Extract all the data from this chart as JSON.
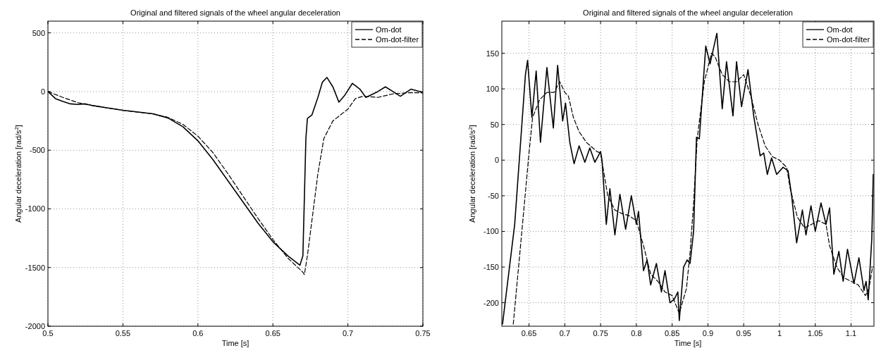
{
  "chart_data": [
    {
      "type": "line",
      "title": "Original and filtered signals of the wheel angular deceleration",
      "xlabel": "Time [s]",
      "ylabel": "Angular deceleration [rad/s$^{2}$]",
      "xlim": [
        0.5,
        0.75
      ],
      "ylim": [
        -2000,
        600
      ],
      "xticks": [
        0.5,
        0.55,
        0.6,
        0.65,
        0.7,
        0.75
      ],
      "yticks": [
        -2000,
        -1500,
        -1000,
        -500,
        0,
        500
      ],
      "grid": true,
      "legend": "top right",
      "marker": "none",
      "series": [
        {
          "name": "Om-dot",
          "color": "#000000",
          "line_style": "solid",
          "x": [
            0.5,
            0.505,
            0.51,
            0.515,
            0.52,
            0.525,
            0.53,
            0.54,
            0.55,
            0.56,
            0.57,
            0.58,
            0.59,
            0.6,
            0.61,
            0.62,
            0.63,
            0.64,
            0.65,
            0.66,
            0.668,
            0.67,
            0.671,
            0.672,
            0.673,
            0.676,
            0.68,
            0.683,
            0.686,
            0.69,
            0.694,
            0.698,
            0.703,
            0.708,
            0.712,
            0.72,
            0.725,
            0.73,
            0.735,
            0.742,
            0.748,
            0.75
          ],
          "values": [
            0,
            -60,
            -85,
            -105,
            -110,
            -105,
            -120,
            -140,
            -160,
            -175,
            -190,
            -225,
            -300,
            -420,
            -580,
            -760,
            -940,
            -1120,
            -1280,
            -1400,
            -1480,
            -1400,
            -900,
            -400,
            -230,
            -200,
            -50,
            80,
            120,
            40,
            -90,
            -30,
            70,
            20,
            -50,
            0,
            40,
            0,
            -40,
            20,
            0,
            -15
          ]
        },
        {
          "name": "Om-dot-filter",
          "color": "#000000",
          "line_style": "dashed",
          "x": [
            0.5,
            0.51,
            0.52,
            0.53,
            0.54,
            0.55,
            0.56,
            0.57,
            0.58,
            0.59,
            0.6,
            0.61,
            0.62,
            0.63,
            0.64,
            0.65,
            0.66,
            0.67,
            0.671,
            0.673,
            0.676,
            0.68,
            0.684,
            0.69,
            0.7,
            0.705,
            0.71,
            0.72,
            0.73,
            0.74,
            0.75
          ],
          "values": [
            0,
            -50,
            -95,
            -120,
            -140,
            -160,
            -175,
            -190,
            -220,
            -280,
            -380,
            -520,
            -700,
            -890,
            -1080,
            -1260,
            -1420,
            -1540,
            -1560,
            -1400,
            -1100,
            -700,
            -400,
            -250,
            -150,
            -60,
            -40,
            -50,
            -20,
            -10,
            -10
          ]
        }
      ]
    },
    {
      "type": "line",
      "title": "Original and filtered signals of the wheel angular deceleration",
      "xlabel": "Time [s]",
      "ylabel": "Angular deceleration [rad/s$^{2}$]",
      "xlim": [
        0.612,
        1.132
      ],
      "ylim": [
        -233,
        195
      ],
      "xticks": [
        0.65,
        0.7,
        0.75,
        0.8,
        0.85,
        0.9,
        0.95,
        1,
        1.05,
        1.1
      ],
      "yticks": [
        -200,
        -150,
        -100,
        -50,
        0,
        50,
        100,
        150
      ],
      "grid": true,
      "legend": "top right",
      "marker": "none",
      "series": [
        {
          "name": "Om-dot",
          "color": "#000000",
          "line_style": "solid",
          "x": [
            0.613,
            0.63,
            0.64,
            0.645,
            0.648,
            0.654,
            0.66,
            0.666,
            0.675,
            0.684,
            0.69,
            0.697,
            0.701,
            0.707,
            0.713,
            0.72,
            0.728,
            0.735,
            0.742,
            0.75,
            0.752,
            0.758,
            0.763,
            0.77,
            0.777,
            0.785,
            0.793,
            0.8,
            0.803,
            0.81,
            0.815,
            0.82,
            0.828,
            0.835,
            0.84,
            0.847,
            0.853,
            0.858,
            0.86,
            0.866,
            0.871,
            0.875,
            0.88,
            0.884,
            0.888,
            0.897,
            0.903,
            0.9125,
            0.92,
            0.926,
            0.935,
            0.94,
            0.947,
            0.956,
            0.964,
            0.973,
            0.978,
            0.983,
            0.989,
            0.996,
            1.005,
            1.012,
            1.017,
            1.024,
            1.032,
            1.037,
            1.044,
            1.05,
            1.058,
            1.065,
            1.07,
            1.076,
            1.083,
            1.089,
            1.095,
            1.104,
            1.111,
            1.118,
            1.121,
            1.124,
            1.129,
            1.131
          ],
          "values": [
            -230,
            -90,
            50,
            120,
            140,
            60,
            125,
            25,
            130,
            45,
            133,
            55,
            80,
            25,
            -5,
            20,
            -3,
            17,
            -3,
            12,
            0,
            -90,
            -40,
            -105,
            -48,
            -97,
            -50,
            -90,
            -72,
            -155,
            -140,
            -175,
            -145,
            -185,
            -155,
            -200,
            -195,
            -185,
            -225,
            -150,
            -140,
            -145,
            -100,
            32,
            30,
            160,
            135,
            178,
            72,
            138,
            62,
            138,
            75,
            127,
            62,
            6,
            10,
            -20,
            3,
            -20,
            -10,
            -15,
            -50,
            -116,
            -70,
            -105,
            -64,
            -100,
            -60,
            -90,
            -67,
            -160,
            -128,
            -170,
            -125,
            -173,
            -137,
            -183,
            -170,
            -196,
            -110,
            -20
          ]
        },
        {
          "name": "Om-dot-filter",
          "color": "#000000",
          "line_style": "dashed",
          "x": [
            0.628,
            0.64,
            0.65,
            0.655,
            0.665,
            0.675,
            0.685,
            0.693,
            0.7,
            0.705,
            0.712,
            0.72,
            0.73,
            0.745,
            0.75,
            0.755,
            0.76,
            0.77,
            0.78,
            0.79,
            0.8,
            0.81,
            0.82,
            0.83,
            0.84,
            0.85,
            0.86,
            0.87,
            0.875,
            0.88,
            0.885,
            0.89,
            0.895,
            0.9,
            0.905,
            0.91,
            0.92,
            0.93,
            0.94,
            0.95,
            0.96,
            0.97,
            0.98,
            0.99,
            1.0,
            1.01,
            1.015,
            1.025,
            1.035,
            1.045,
            1.055,
            1.065,
            1.07,
            1.08,
            1.09,
            1.1,
            1.11,
            1.12,
            1.125,
            1.13
          ],
          "values": [
            -230,
            -100,
            10,
            60,
            85,
            95,
            95,
            110,
            95,
            90,
            60,
            40,
            25,
            12,
            10,
            -20,
            -50,
            -70,
            -75,
            -78,
            -85,
            -120,
            -160,
            -170,
            -185,
            -190,
            -215,
            -180,
            -130,
            -60,
            30,
            70,
            110,
            130,
            150,
            145,
            120,
            110,
            110,
            120,
            90,
            50,
            20,
            5,
            0,
            -10,
            -40,
            -80,
            -95,
            -90,
            -85,
            -90,
            -120,
            -150,
            -165,
            -170,
            -175,
            -190,
            -180,
            -150
          ]
        }
      ]
    }
  ]
}
